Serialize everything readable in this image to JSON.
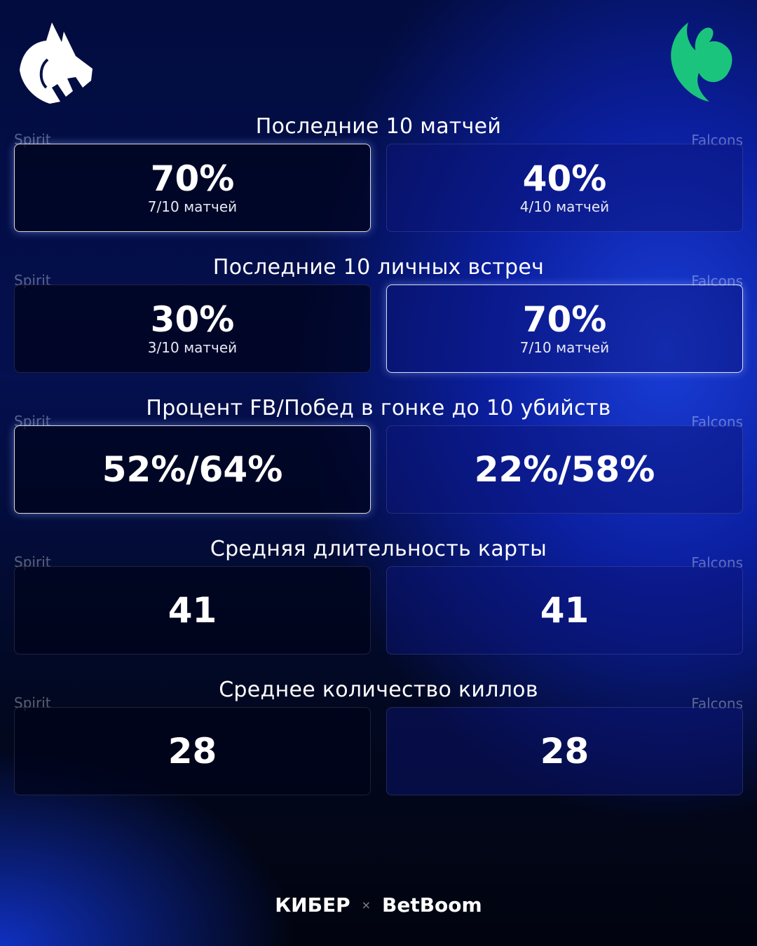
{
  "teams": {
    "left": "Spirit",
    "right": "Falcons"
  },
  "colors": {
    "falcons_logo": "#1bc47d",
    "spirit_logo": "#ffffff"
  },
  "sections": [
    {
      "title": "Последние 10 матчей",
      "left": {
        "value": "70%",
        "sub": "7/10 матчей",
        "highlight": true
      },
      "right": {
        "value": "40%",
        "sub": "4/10 матчей",
        "highlight": false
      }
    },
    {
      "title": "Последние 10 личных встреч",
      "left": {
        "value": "30%",
        "sub": "3/10 матчей",
        "highlight": false
      },
      "right": {
        "value": "70%",
        "sub": "7/10 матчей",
        "highlight": true
      }
    },
    {
      "title": "Процент FB/Побед в гонке до 10 убийств",
      "left": {
        "value": "52%/64%",
        "highlight": true
      },
      "right": {
        "value": "22%/58%",
        "highlight": false
      }
    },
    {
      "title": "Средняя длительность карты",
      "left": {
        "value": "41",
        "highlight": false
      },
      "right": {
        "value": "41",
        "highlight": false
      }
    },
    {
      "title": "Среднее количество киллов",
      "left": {
        "value": "28",
        "highlight": false
      },
      "right": {
        "value": "28",
        "highlight": false
      }
    }
  ],
  "footer": {
    "brand1": "КИБЕР",
    "sep": "×",
    "brand2": "BetBoom"
  }
}
